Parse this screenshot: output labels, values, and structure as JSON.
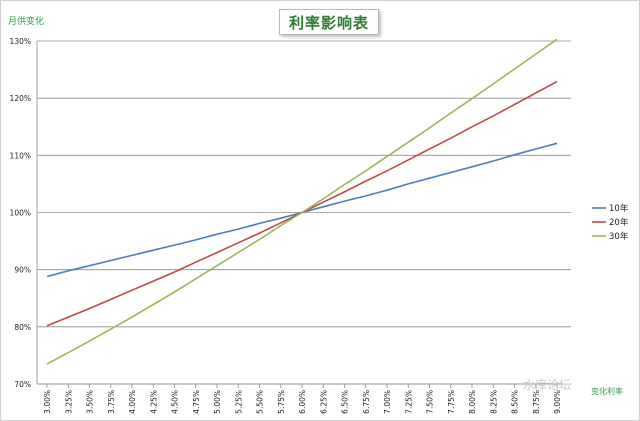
{
  "chart_data": {
    "type": "line",
    "title": "利率影响表",
    "ylabel": "月供变化",
    "xlabel": "变化利率",
    "ylim": [
      0.7,
      1.3
    ],
    "yticks": [
      "70%",
      "80%",
      "90%",
      "100%",
      "110%",
      "120%",
      "130%"
    ],
    "ytick_values": [
      0.7,
      0.8,
      0.9,
      1.0,
      1.1,
      1.2,
      1.3
    ],
    "categories": [
      "3.00%",
      "3.25%",
      "3.50%",
      "3.75%",
      "4.00%",
      "4.25%",
      "4.50%",
      "4.75%",
      "5.00%",
      "5.25%",
      "5.50%",
      "5.75%",
      "6.00%",
      "6.25%",
      "6.50%",
      "6.75%",
      "7.00%",
      "7.25%",
      "7.50%",
      "7.75%",
      "8.00%",
      "8.25%",
      "8.50%",
      "8.75%",
      "9.00%"
    ],
    "grid": true,
    "legend_position": "right",
    "series": [
      {
        "name": "10年",
        "color": "#4a7ebb",
        "values": [
          0.888,
          0.898,
          0.907,
          0.916,
          0.925,
          0.934,
          0.943,
          0.952,
          0.962,
          0.971,
          0.981,
          0.99,
          1.0,
          1.01,
          1.02,
          1.029,
          1.039,
          1.05,
          1.06,
          1.07,
          1.08,
          1.09,
          1.101,
          1.111,
          1.121
        ]
      },
      {
        "name": "20年",
        "color": "#be4b48",
        "values": [
          0.802,
          0.817,
          0.832,
          0.848,
          0.864,
          0.88,
          0.896,
          0.913,
          0.93,
          0.947,
          0.964,
          0.982,
          1.0,
          1.018,
          1.036,
          1.055,
          1.073,
          1.092,
          1.111,
          1.13,
          1.15,
          1.169,
          1.189,
          1.209,
          1.229
        ]
      },
      {
        "name": "30年",
        "color": "#98b954",
        "values": [
          0.735,
          0.755,
          0.775,
          0.796,
          0.817,
          0.839,
          0.861,
          0.884,
          0.907,
          0.93,
          0.953,
          0.977,
          1.0,
          1.024,
          1.049,
          1.073,
          1.098,
          1.123,
          1.148,
          1.174,
          1.199,
          1.225,
          1.251,
          1.277,
          1.303
        ]
      }
    ]
  },
  "watermark": "水库论坛"
}
